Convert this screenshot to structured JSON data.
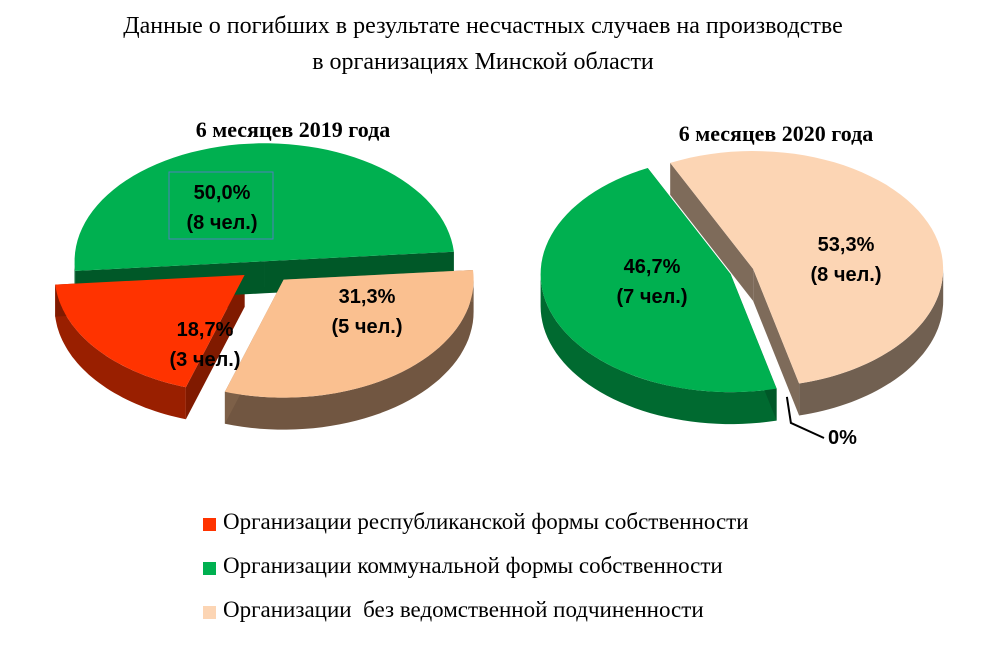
{
  "title_line1": "Данные о погибших в результате несчастных случаев на производстве",
  "title_line2": "в организациях Минской области",
  "chart_data": [
    {
      "type": "pie",
      "title": "6 месяцев 2019 года",
      "slices": [
        {
          "category": "Организации республиканской формы собственности",
          "value": 18.7,
          "people": 3,
          "percent_label": "18,7%",
          "count_label": "(3 чел.)",
          "color": "#ff3300"
        },
        {
          "category": "Организации коммунальной формы собственности",
          "value": 50.0,
          "people": 8,
          "percent_label": "50,0%",
          "count_label": "(8 чел.)",
          "color": "#00b050"
        },
        {
          "category": "Организации  без ведомственной подчиненности",
          "value": 31.3,
          "people": 5,
          "percent_label": "31,3%",
          "count_label": "(5 чел.)",
          "color": "#fac090"
        }
      ]
    },
    {
      "type": "pie",
      "title": "6 месяцев 2020 года",
      "slices": [
        {
          "category": "Организации республиканской формы собственности",
          "value": 0,
          "people": 0,
          "percent_label": "0%",
          "count_label": "",
          "color": "#ff3300"
        },
        {
          "category": "Организации коммунальной формы собственности",
          "value": 46.7,
          "people": 7,
          "percent_label": "46,7%",
          "count_label": "(7 чел.)",
          "color": "#00b050"
        },
        {
          "category": "Организации  без ведомственной подчиненности",
          "value": 53.3,
          "people": 8,
          "percent_label": "53,3%",
          "count_label": "(8 чел.)",
          "color": "#fcd5b4"
        }
      ]
    }
  ],
  "legend": [
    {
      "label": "Организации республиканской формы собственности",
      "color": "#ff3300"
    },
    {
      "label": "Организации коммунальной формы собственности",
      "color": "#00b050"
    },
    {
      "label": "Организации  без ведомственной подчиненности",
      "color": "#fcd5b4"
    }
  ]
}
